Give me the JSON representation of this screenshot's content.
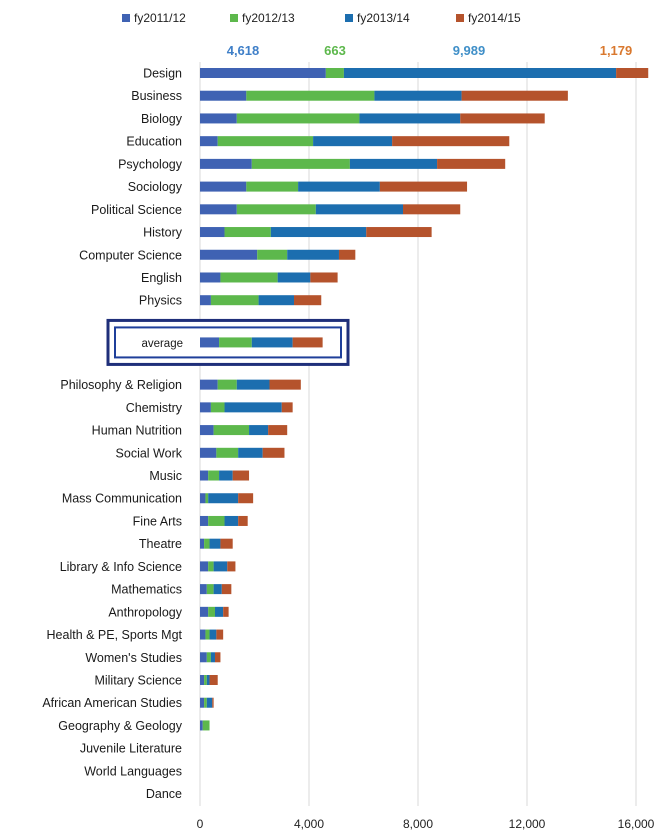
{
  "chart_data": {
    "type": "bar",
    "orientation": "horizontal",
    "stacked": true,
    "grid": true,
    "legend_position": "top",
    "xlim": [
      0,
      16000
    ],
    "x_ticks": [
      "0",
      "4,000",
      "8,000",
      "12,000",
      "16,000"
    ],
    "x_tick_values": [
      0,
      4000,
      8000,
      12000,
      16000
    ],
    "categories": [
      "Design",
      "Business",
      "Biology",
      "Education",
      "Psychology",
      "Sociology",
      "Political Science",
      "History",
      "Computer Science",
      "English",
      "Physics",
      "average",
      "Philosophy & Religion",
      "Chemistry",
      "Human Nutrition",
      "Social Work",
      "Music",
      "Mass Communication",
      "Fine Arts",
      "Theatre",
      "Library & Info Science",
      "Mathematics",
      "Anthropology",
      "Health & PE, Sports Mgt",
      "Women's Studies",
      "Military Science",
      "African American Studies",
      "Geography & Geology",
      "Juvenile Literature",
      "World Languages",
      "Dance"
    ],
    "highlighted_category": "average",
    "series": [
      {
        "name": "fy2011/12",
        "color": "#3f62b3",
        "values": [
          4618,
          1700,
          1350,
          650,
          1900,
          1700,
          1350,
          900,
          2100,
          750,
          400,
          700,
          650,
          400,
          500,
          600,
          300,
          200,
          300,
          150,
          300,
          250,
          300,
          200,
          250,
          150,
          150,
          100,
          0,
          0,
          0
        ]
      },
      {
        "name": "fy2012/13",
        "color": "#5db84c",
        "values": [
          663,
          4700,
          4500,
          3500,
          3600,
          1900,
          2900,
          1700,
          1100,
          2100,
          1750,
          1200,
          700,
          500,
          1300,
          800,
          400,
          100,
          600,
          200,
          200,
          250,
          250,
          150,
          150,
          100,
          100,
          250,
          0,
          0,
          0
        ]
      },
      {
        "name": "fy2013/14",
        "color": "#1c6eaf",
        "values": [
          9989,
          3200,
          3700,
          2900,
          3200,
          3000,
          3200,
          3500,
          1900,
          1200,
          1300,
          1500,
          1200,
          2100,
          700,
          900,
          500,
          1100,
          500,
          400,
          500,
          300,
          300,
          250,
          150,
          100,
          200,
          0,
          0,
          0,
          0
        ]
      },
      {
        "name": "fy2014/15",
        "color": "#b5532c",
        "values": [
          1179,
          3900,
          3100,
          4300,
          2500,
          3200,
          2100,
          2400,
          600,
          1000,
          1000,
          1100,
          1150,
          400,
          700,
          800,
          600,
          550,
          350,
          450,
          300,
          350,
          200,
          250,
          200,
          300,
          50,
          0,
          0,
          0,
          0
        ]
      }
    ],
    "data_labels": [
      {
        "series": "fy2011/12",
        "text": "4,618",
        "color": "#3f7fc8"
      },
      {
        "series": "fy2012/13",
        "text": "663",
        "color": "#5db84c"
      },
      {
        "series": "fy2013/14",
        "text": "9,989",
        "color": "#3f8fc8"
      },
      {
        "series": "fy2014/15",
        "text": "1,179",
        "color": "#d9782e"
      }
    ]
  }
}
